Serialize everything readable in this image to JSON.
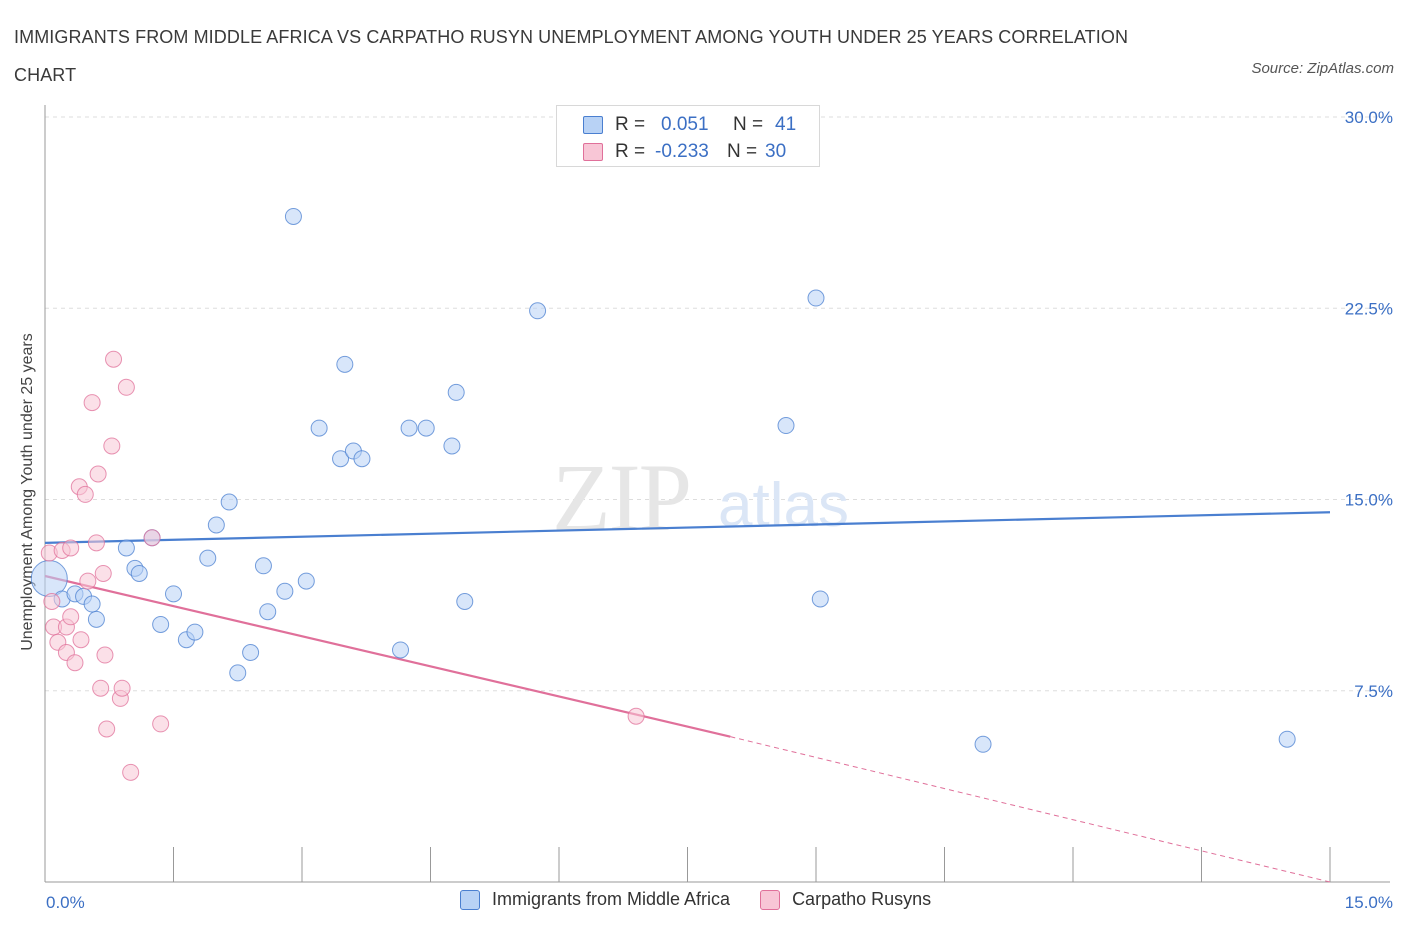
{
  "title": "IMMIGRANTS FROM MIDDLE AFRICA VS CARPATHO RUSYN UNEMPLOYMENT AMONG YOUTH UNDER 25 YEARS CORRELATION CHART",
  "source": "Source: ZipAtlas.com",
  "watermark": {
    "zip": "ZIP",
    "atlas": "atlas"
  },
  "legend": {
    "row1": {
      "r_label": "R =",
      "r_value": "0.051",
      "n_label": "N =",
      "n_value": "41"
    },
    "row2": {
      "r_label": "R =",
      "r_value": "-0.233",
      "n_label": "N =",
      "n_value": "30"
    }
  },
  "colors": {
    "blue": "#4a7fd0",
    "blue_fill": "#b8d2f5",
    "pink": "#e0709a",
    "pink_fill": "#f8c6d6",
    "value_text": "#3b6fc4",
    "grid": "#dddddd"
  },
  "chart_data": {
    "type": "scatter",
    "title": "IMMIGRANTS FROM MIDDLE AFRICA VS CARPATHO RUSYN UNEMPLOYMENT AMONG YOUTH UNDER 25 YEARS CORRELATION CHART",
    "xlabel": "",
    "ylabel": "Unemployment Among Youth under 25 years",
    "xlim": [
      0,
      15
    ],
    "ylim": [
      0,
      30
    ],
    "x_tick_labels": [
      "0.0%",
      "15.0%"
    ],
    "y_tick_labels": [
      "7.5%",
      "15.0%",
      "22.5%",
      "30.0%"
    ],
    "y_ticks": [
      7.5,
      15,
      22.5,
      30
    ],
    "grid": true,
    "legend_position": "top-center",
    "series": [
      {
        "name": "Immigrants from Middle Africa",
        "color": "#4a7fd0",
        "r": 0.051,
        "n": 41,
        "trend": {
          "x0": 0.0,
          "y0": 13.3,
          "x1": 15.0,
          "y1": 14.5
        },
        "points": [
          {
            "x": 0.05,
            "y": 11.9,
            "big": true
          },
          {
            "x": 0.2,
            "y": 11.1
          },
          {
            "x": 0.35,
            "y": 11.3
          },
          {
            "x": 0.45,
            "y": 11.2
          },
          {
            "x": 0.6,
            "y": 10.3
          },
          {
            "x": 0.55,
            "y": 10.9
          },
          {
            "x": 0.95,
            "y": 13.1
          },
          {
            "x": 1.05,
            "y": 12.3
          },
          {
            "x": 1.1,
            "y": 12.1
          },
          {
            "x": 1.25,
            "y": 13.5
          },
          {
            "x": 1.35,
            "y": 10.1
          },
          {
            "x": 1.5,
            "y": 11.3
          },
          {
            "x": 1.65,
            "y": 9.5
          },
          {
            "x": 1.75,
            "y": 9.8
          },
          {
            "x": 1.9,
            "y": 12.7
          },
          {
            "x": 2.0,
            "y": 14.0
          },
          {
            "x": 2.15,
            "y": 14.9
          },
          {
            "x": 2.4,
            "y": 9.0
          },
          {
            "x": 2.25,
            "y": 8.2
          },
          {
            "x": 2.55,
            "y": 12.4
          },
          {
            "x": 2.6,
            "y": 10.6
          },
          {
            "x": 2.8,
            "y": 11.4
          },
          {
            "x": 2.9,
            "y": 26.1
          },
          {
            "x": 3.05,
            "y": 11.8
          },
          {
            "x": 3.2,
            "y": 17.8
          },
          {
            "x": 3.45,
            "y": 16.6
          },
          {
            "x": 3.5,
            "y": 20.3
          },
          {
            "x": 3.6,
            "y": 16.9
          },
          {
            "x": 3.7,
            "y": 16.6
          },
          {
            "x": 4.15,
            "y": 9.1
          },
          {
            "x": 4.25,
            "y": 17.8
          },
          {
            "x": 4.45,
            "y": 17.8
          },
          {
            "x": 4.75,
            "y": 17.1
          },
          {
            "x": 4.8,
            "y": 19.2
          },
          {
            "x": 4.9,
            "y": 11.0
          },
          {
            "x": 5.75,
            "y": 22.4
          },
          {
            "x": 8.65,
            "y": 17.9
          },
          {
            "x": 9.0,
            "y": 22.9
          },
          {
            "x": 9.05,
            "y": 11.1
          },
          {
            "x": 10.95,
            "y": 5.4
          },
          {
            "x": 14.5,
            "y": 5.6
          }
        ]
      },
      {
        "name": "Carpatho Rusyns",
        "color": "#e0709a",
        "r": -0.233,
        "n": 30,
        "trend": {
          "x0": 0.0,
          "y0": 12.0,
          "x1": 8.0,
          "y1": 5.7
        },
        "trend_dashed": {
          "x0": 8.0,
          "y0": 5.7,
          "x1": 15.0,
          "y1": 0.0
        },
        "points": [
          {
            "x": 0.05,
            "y": 12.9
          },
          {
            "x": 0.08,
            "y": 11.0
          },
          {
            "x": 0.1,
            "y": 10.0
          },
          {
            "x": 0.15,
            "y": 9.4
          },
          {
            "x": 0.2,
            "y": 13.0
          },
          {
            "x": 0.25,
            "y": 10.0
          },
          {
            "x": 0.25,
            "y": 9.0
          },
          {
            "x": 0.3,
            "y": 10.4
          },
          {
            "x": 0.3,
            "y": 13.1
          },
          {
            "x": 0.35,
            "y": 8.6
          },
          {
            "x": 0.4,
            "y": 15.5
          },
          {
            "x": 0.42,
            "y": 9.5
          },
          {
            "x": 0.47,
            "y": 15.2
          },
          {
            "x": 0.5,
            "y": 11.8
          },
          {
            "x": 0.55,
            "y": 18.8
          },
          {
            "x": 0.6,
            "y": 13.3
          },
          {
            "x": 0.62,
            "y": 16.0
          },
          {
            "x": 0.65,
            "y": 7.6
          },
          {
            "x": 0.68,
            "y": 12.1
          },
          {
            "x": 0.7,
            "y": 8.9
          },
          {
            "x": 0.72,
            "y": 6.0
          },
          {
            "x": 0.78,
            "y": 17.1
          },
          {
            "x": 0.8,
            "y": 20.5
          },
          {
            "x": 0.88,
            "y": 7.2
          },
          {
            "x": 0.9,
            "y": 7.6
          },
          {
            "x": 0.95,
            "y": 19.4
          },
          {
            "x": 1.0,
            "y": 4.3
          },
          {
            "x": 1.25,
            "y": 13.5
          },
          {
            "x": 1.35,
            "y": 6.2
          },
          {
            "x": 6.9,
            "y": 6.5
          }
        ]
      }
    ]
  }
}
